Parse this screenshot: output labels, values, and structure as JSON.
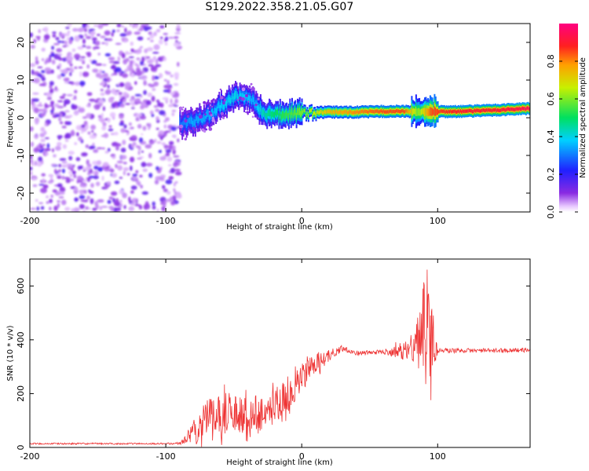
{
  "title": "S129.2022.358.21.05.G07",
  "colors": {
    "snr_line": "#ee3333",
    "frame": "#000000"
  },
  "chart_data": [
    {
      "type": "heatmap",
      "xlabel": "Height of straight line (km)",
      "ylabel": "Frequency (Hz)",
      "xlim": [
        -200,
        168
      ],
      "ylim": [
        -25,
        25
      ],
      "x_ticks": [
        -200,
        -100,
        0,
        100
      ],
      "y_ticks": [
        -20,
        -10,
        0,
        10,
        20
      ],
      "x_tick_labels": [
        "-200",
        "-100",
        "0",
        "100"
      ],
      "y_tick_labels": [
        "-20",
        "-10",
        "0",
        "10",
        "20"
      ],
      "colorbar": {
        "label": "Normalized spectral amplitude",
        "range": [
          0,
          1
        ],
        "ticks": [
          0.0,
          0.2,
          0.4,
          0.6,
          0.8
        ],
        "tick_labels": [
          "0.0",
          "0.2",
          "0.4",
          "0.6",
          "0.8"
        ],
        "colormap": "rainbow (white→violet→blue→cyan→green→yellow→red→magenta)"
      },
      "noise_region_x": [
        -200,
        -90
      ],
      "ridge": [
        {
          "x": -90,
          "freq": -1.5,
          "amp": 0.3
        },
        {
          "x": -80,
          "freq": -1.0,
          "amp": 0.35
        },
        {
          "x": -70,
          "freq": 0.5,
          "amp": 0.35
        },
        {
          "x": -60,
          "freq": 3.0,
          "amp": 0.38
        },
        {
          "x": -50,
          "freq": 5.5,
          "amp": 0.4
        },
        {
          "x": -42,
          "freq": 6.0,
          "amp": 0.38
        },
        {
          "x": -35,
          "freq": 4.0,
          "amp": 0.35
        },
        {
          "x": -28,
          "freq": 0.8,
          "amp": 0.45
        },
        {
          "x": -20,
          "freq": 0.8,
          "amp": 0.5
        },
        {
          "x": -10,
          "freq": 1.0,
          "amp": 0.55
        },
        {
          "x": 0,
          "freq": 1.2,
          "amp": 0.6
        },
        {
          "x": 20,
          "freq": 1.5,
          "amp": 0.75
        },
        {
          "x": 40,
          "freq": 1.5,
          "amp": 0.8
        },
        {
          "x": 60,
          "freq": 1.7,
          "amp": 0.85
        },
        {
          "x": 75,
          "freq": 1.7,
          "amp": 0.85
        },
        {
          "x": 85,
          "freq": 1.5,
          "amp": 0.6
        },
        {
          "x": 95,
          "freq": 1.6,
          "amp": 0.85
        },
        {
          "x": 120,
          "freq": 1.7,
          "amp": 0.9
        },
        {
          "x": 140,
          "freq": 2.0,
          "amp": 0.9
        },
        {
          "x": 168,
          "freq": 2.5,
          "amp": 0.95
        }
      ]
    },
    {
      "type": "line",
      "xlabel": "Height of straight line (km)",
      "ylabel": "SNR (10 * v/v)",
      "xlim": [
        -200,
        168
      ],
      "ylim": [
        0,
        700
      ],
      "x_ticks": [
        -200,
        -100,
        0,
        100
      ],
      "y_ticks": [
        0,
        200,
        400,
        600
      ],
      "x_tick_labels": [
        "-200",
        "-100",
        "0",
        "100"
      ],
      "y_tick_labels": [
        "0",
        "200",
        "400",
        "600"
      ],
      "series": [
        {
          "color": "#ee3333",
          "x": [
            -200,
            -150,
            -100,
            -90,
            -80,
            -70,
            -60,
            -50,
            -40,
            -30,
            -20,
            -10,
            0,
            10,
            20,
            30,
            40,
            60,
            80,
            85,
            90,
            95,
            100,
            120,
            140,
            168
          ],
          "y": [
            14,
            14,
            14,
            15,
            50,
            100,
            120,
            130,
            120,
            130,
            150,
            200,
            260,
            310,
            340,
            370,
            350,
            355,
            360,
            380,
            420,
            380,
            360,
            360,
            360,
            362
          ],
          "noise": [
            3,
            3,
            3,
            5,
            40,
            80,
            80,
            75,
            70,
            70,
            75,
            65,
            55,
            40,
            22,
            12,
            8,
            8,
            40,
            90,
            200,
            230,
            10,
            8,
            8,
            8
          ]
        }
      ]
    }
  ]
}
